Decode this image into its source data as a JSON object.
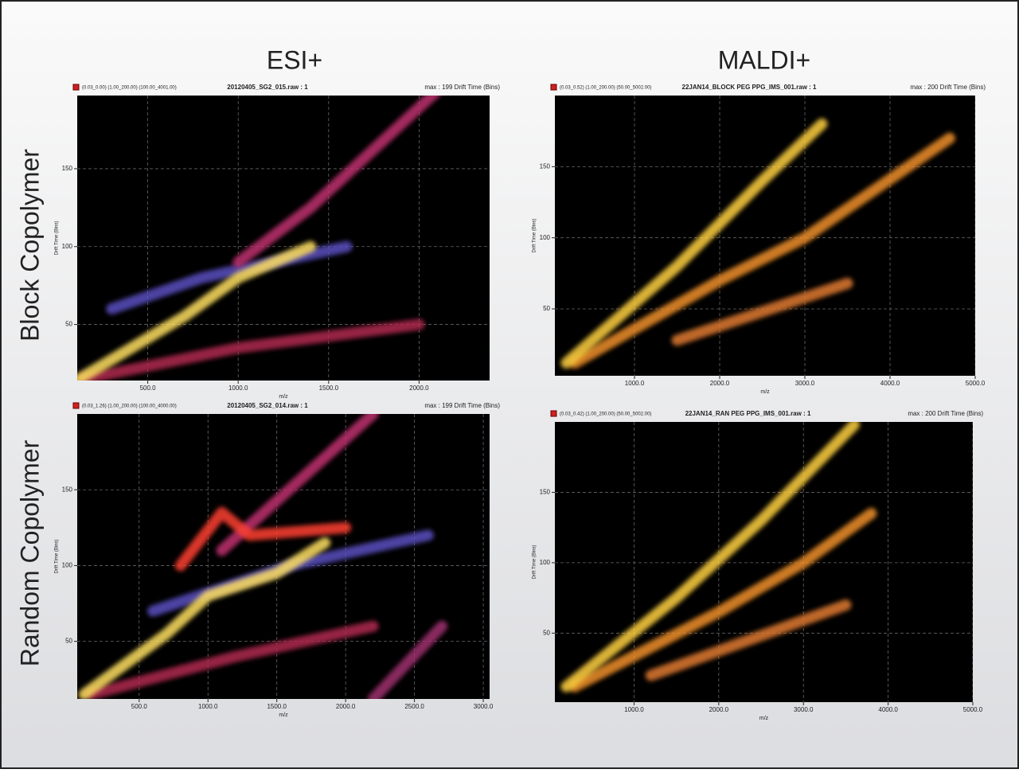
{
  "column_titles": [
    "ESI+",
    "MALDI+"
  ],
  "row_labels": [
    "Block Copolymer",
    "Random Copolymer"
  ],
  "chart_data": [
    {
      "type": "density",
      "range_text": "(0.03_0.00) (1.00_200.00) (100.00_4001.00)",
      "title": "20120405_SG2_015.raw : 1",
      "max_text": "max : 199 Drift Time (Bins)",
      "xlabel": "m/z",
      "ylabel": "Drift Time (Bins)",
      "xlim": [
        110,
        2390
      ],
      "ylim": [
        14,
        197
      ],
      "grid": true,
      "xticks": [
        {
          "value": 500,
          "label": "500.0"
        },
        {
          "value": 1000,
          "label": "1000.0"
        },
        {
          "value": 1500,
          "label": "1500.0"
        },
        {
          "value": 2000,
          "label": "2000.0"
        }
      ],
      "yticks": [
        50,
        100,
        150
      ],
      "series": [
        {
          "color": "#5a4fc0",
          "x": [
            300,
            800,
            1600
          ],
          "values": [
            60,
            80,
            100
          ]
        },
        {
          "color": "#b02a50",
          "x": [
            150,
            1000,
            2000
          ],
          "values": [
            15,
            35,
            50
          ]
        },
        {
          "color": "#c0306f",
          "x": [
            1000,
            1400,
            2100
          ],
          "values": [
            90,
            125,
            200
          ]
        },
        {
          "color": "#ffe060",
          "x": [
            120,
            700,
            1000,
            1400
          ],
          "values": [
            15,
            55,
            80,
            100
          ]
        }
      ]
    },
    {
      "type": "density",
      "range_text": "(0.03_0.52) (1.00_200.00) (50.00_5002.00)",
      "title": "22JAN14_BLOCK PEG PPG_IMS_001.raw : 1",
      "max_text": "max : 200 Drift Time (Bins)",
      "xlabel": "m/z",
      "ylabel": "Drift Time (Bins)",
      "xlim": [
        65,
        5000
      ],
      "ylim": [
        3,
        200
      ],
      "grid": true,
      "xticks": [
        {
          "value": 1000,
          "label": "1000.0"
        },
        {
          "value": 2000,
          "label": "2000.0"
        },
        {
          "value": 3000,
          "label": "3000.0"
        },
        {
          "value": 4000,
          "label": "4000.0"
        },
        {
          "value": 5000,
          "label": "5000.0"
        }
      ],
      "yticks": [
        50,
        100,
        150
      ],
      "series": [
        {
          "color": "#e07a30",
          "x": [
            1500,
            3500
          ],
          "values": [
            28,
            68
          ]
        },
        {
          "color": "#f0902a",
          "x": [
            300,
            2000,
            3000,
            4700
          ],
          "values": [
            12,
            70,
            100,
            170
          ]
        },
        {
          "color": "#ffd040",
          "x": [
            200,
            1500,
            2500,
            3200
          ],
          "values": [
            12,
            80,
            140,
            180
          ]
        }
      ]
    },
    {
      "type": "density",
      "range_text": "(0.03_1.26) (1.00_200.00) (100.00_4000.00)",
      "title": "20120405_SG2_014.raw : 1",
      "max_text": "max : 199 Drift Time (Bins)",
      "xlabel": "m/z",
      "ylabel": "Drift Time (Bins)",
      "xlim": [
        50,
        3046
      ],
      "ylim": [
        12,
        200
      ],
      "grid": true,
      "xticks": [
        {
          "value": 500,
          "label": "500.0"
        },
        {
          "value": 1000,
          "label": "1000.0"
        },
        {
          "value": 1500,
          "label": "1500.0"
        },
        {
          "value": 2000,
          "label": "2000.0"
        },
        {
          "value": 2500,
          "label": "2500.0"
        },
        {
          "value": 3000,
          "label": "3000.0"
        }
      ],
      "yticks": [
        50,
        100,
        150
      ],
      "series": [
        {
          "color": "#5a4fc0",
          "x": [
            600,
            1600,
            2600
          ],
          "values": [
            70,
            100,
            120
          ]
        },
        {
          "color": "#b02a50",
          "x": [
            150,
            1200,
            2200
          ],
          "values": [
            15,
            40,
            60
          ]
        },
        {
          "color": "#c0306f",
          "x": [
            1100,
            2200
          ],
          "values": [
            110,
            200
          ]
        },
        {
          "color": "#a03070",
          "x": [
            2200,
            2700
          ],
          "values": [
            12,
            60
          ]
        },
        {
          "color": "#ff4030",
          "x": [
            800,
            1100,
            1300,
            2000
          ],
          "values": [
            100,
            135,
            120,
            125
          ]
        },
        {
          "color": "#ffe060",
          "x": [
            100,
            700,
            1000,
            1500,
            1850
          ],
          "values": [
            15,
            55,
            80,
            95,
            115
          ]
        }
      ]
    },
    {
      "type": "density",
      "range_text": "(0.03_0.42) (1.00_200.00) (50.00_5002.00)",
      "title": "22JAN14_RAN PEG PPG_IMS_001.raw : 1",
      "max_text": "max : 200 Drift Time (Bins)",
      "xlabel": "m/z",
      "ylabel": "Drift Time (Bins)",
      "xlim": [
        65,
        5000
      ],
      "ylim": [
        1,
        200
      ],
      "grid": true,
      "xticks": [
        {
          "value": 1000,
          "label": "1000.0"
        },
        {
          "value": 2000,
          "label": "2000.0"
        },
        {
          "value": 3000,
          "label": "3000.0"
        },
        {
          "value": 4000,
          "label": "4000.0"
        },
        {
          "value": 5000,
          "label": "5000.0"
        }
      ],
      "yticks": [
        50,
        100,
        150
      ],
      "series": [
        {
          "color": "#e07a30",
          "x": [
            1200,
            3500
          ],
          "values": [
            20,
            70
          ]
        },
        {
          "color": "#f0902a",
          "x": [
            300,
            2000,
            3000,
            3800
          ],
          "values": [
            12,
            65,
            100,
            135
          ]
        },
        {
          "color": "#ffd040",
          "x": [
            200,
            1500,
            2500,
            3600
          ],
          "values": [
            12,
            75,
            130,
            198
          ]
        }
      ]
    }
  ]
}
